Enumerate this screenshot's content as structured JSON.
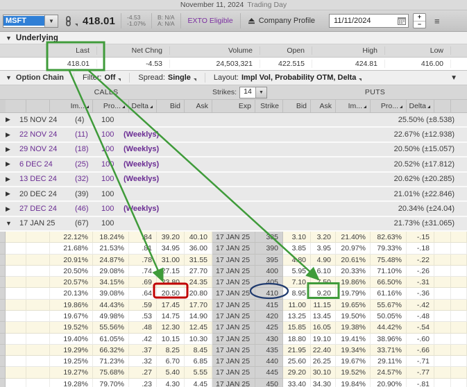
{
  "title_bar": {
    "date_text": "November 11, 2024",
    "day_text": "Trading Day"
  },
  "toolbar": {
    "symbol": "MSFT",
    "price": "418.01",
    "net_change": "-4.53",
    "net_change_pct": "-1.07%",
    "bid": "B: N/A",
    "ask": "A: N/A",
    "exto_label": "EXTO Eligible",
    "company_profile_label": "Company Profile",
    "date_value": "11/11/2024"
  },
  "underlying": {
    "section_label": "Underlying",
    "columns": [
      "Last",
      "Net Chng",
      "Volume",
      "Open",
      "High",
      "Low"
    ],
    "values": [
      "418.01",
      "-4.53",
      "24,503,321",
      "422.515",
      "424.81",
      "416.00"
    ]
  },
  "option_chain": {
    "section_label": "Option Chain",
    "filter_label": "Filter:",
    "filter_value": "Off",
    "spread_label": "Spread:",
    "spread_value": "Single",
    "layout_label": "Layout:",
    "layout_value": "Impl Vol, Probability OTM, Delta",
    "calls_label": "CALLS",
    "puts_label": "PUTS",
    "strikes_label": "Strikes:",
    "strikes_value": "14",
    "call_headers": [
      "Im...",
      "Pro...",
      "Delta",
      "Bid",
      "Ask",
      "Exp"
    ],
    "put_headers": [
      "Strike",
      "Bid",
      "Ask",
      "Im...",
      "Pro...",
      "Delta"
    ],
    "expirations": [
      {
        "date": "15 NOV 24",
        "days": "(4)",
        "mult": "100",
        "weekly": "",
        "iv": "25.50% (±8.538)",
        "expanded": false
      },
      {
        "date": "22 NOV 24",
        "days": "(11)",
        "mult": "100",
        "weekly": "(Weeklys)",
        "iv": "22.67% (±12.938)",
        "expanded": false
      },
      {
        "date": "29 NOV 24",
        "days": "(18)",
        "mult": "100",
        "weekly": "(Weeklys)",
        "iv": "20.50% (±15.057)",
        "expanded": false
      },
      {
        "date": "6 DEC 24",
        "days": "(25)",
        "mult": "100",
        "weekly": "(Weeklys)",
        "iv": "20.52% (±17.812)",
        "expanded": false
      },
      {
        "date": "13 DEC 24",
        "days": "(32)",
        "mult": "100",
        "weekly": "(Weeklys)",
        "iv": "20.62% (±20.285)",
        "expanded": false
      },
      {
        "date": "20 DEC 24",
        "days": "(39)",
        "mult": "100",
        "weekly": "",
        "iv": "21.01% (±22.846)",
        "expanded": false
      },
      {
        "date": "27 DEC 24",
        "days": "(46)",
        "mult": "100",
        "weekly": "(Weeklys)",
        "iv": "20.34% (±24.04)",
        "expanded": false
      },
      {
        "date": "17 JAN 25",
        "days": "(67)",
        "mult": "100",
        "weekly": "",
        "iv": "21.73% (±31.065)",
        "expanded": true
      }
    ],
    "rows": [
      {
        "c_iv": "22.12%",
        "c_prob": "18.24%",
        "c_delta": ".84",
        "c_bid": "39.20",
        "c_ask": "40.10",
        "exp": "17 JAN 25",
        "strike": "385",
        "p_bid": "3.10",
        "p_ask": "3.20",
        "p_iv": "21.40%",
        "p_prob": "82.63%",
        "p_delta": "-.15"
      },
      {
        "c_iv": "21.68%",
        "c_prob": "21.53%",
        "c_delta": ".81",
        "c_bid": "34.95",
        "c_ask": "36.00",
        "exp": "17 JAN 25",
        "strike": "390",
        "p_bid": "3.85",
        "p_ask": "3.95",
        "p_iv": "20.97%",
        "p_prob": "79.33%",
        "p_delta": "-.18"
      },
      {
        "c_iv": "20.91%",
        "c_prob": "24.87%",
        "c_delta": ".78",
        "c_bid": "31.00",
        "c_ask": "31.55",
        "exp": "17 JAN 25",
        "strike": "395",
        "p_bid": "4.80",
        "p_ask": "4.90",
        "p_iv": "20.61%",
        "p_prob": "75.48%",
        "p_delta": "-.22"
      },
      {
        "c_iv": "20.50%",
        "c_prob": "29.08%",
        "c_delta": ".74",
        "c_bid": "27.15",
        "c_ask": "27.70",
        "exp": "17 JAN 25",
        "strike": "400",
        "p_bid": "5.95",
        "p_ask": "6.10",
        "p_iv": "20.33%",
        "p_prob": "71.10%",
        "p_delta": "-.26"
      },
      {
        "c_iv": "20.57%",
        "c_prob": "34.15%",
        "c_delta": ".69",
        "c_bid": "23.80",
        "c_ask": "24.35",
        "exp": "17 JAN 25",
        "strike": "405",
        "p_bid": "7.10",
        "p_ask": "7.50",
        "p_iv": "19.86%",
        "p_prob": "66.50%",
        "p_delta": "-.31"
      },
      {
        "c_iv": "20.13%",
        "c_prob": "39.08%",
        "c_delta": ".64",
        "c_bid": "20.50",
        "c_ask": "20.80",
        "exp": "17 JAN 25",
        "strike": "410",
        "p_bid": "8.95",
        "p_ask": "9.20",
        "p_iv": "19.79%",
        "p_prob": "61.16%",
        "p_delta": "-.36"
      },
      {
        "c_iv": "19.86%",
        "c_prob": "44.43%",
        "c_delta": ".59",
        "c_bid": "17.45",
        "c_ask": "17.70",
        "exp": "17 JAN 25",
        "strike": "415",
        "p_bid": "11.00",
        "p_ask": "11.15",
        "p_iv": "19.65%",
        "p_prob": "55.67%",
        "p_delta": "-.42"
      },
      {
        "c_iv": "19.67%",
        "c_prob": "49.98%",
        "c_delta": ".53",
        "c_bid": "14.75",
        "c_ask": "14.90",
        "exp": "17 JAN 25",
        "strike": "420",
        "p_bid": "13.25",
        "p_ask": "13.45",
        "p_iv": "19.50%",
        "p_prob": "50.05%",
        "p_delta": "-.48"
      },
      {
        "c_iv": "19.52%",
        "c_prob": "55.56%",
        "c_delta": ".48",
        "c_bid": "12.30",
        "c_ask": "12.45",
        "exp": "17 JAN 25",
        "strike": "425",
        "p_bid": "15.85",
        "p_ask": "16.05",
        "p_iv": "19.38%",
        "p_prob": "44.42%",
        "p_delta": "-.54"
      },
      {
        "c_iv": "19.40%",
        "c_prob": "61.05%",
        "c_delta": ".42",
        "c_bid": "10.15",
        "c_ask": "10.30",
        "exp": "17 JAN 25",
        "strike": "430",
        "p_bid": "18.80",
        "p_ask": "19.10",
        "p_iv": "19.41%",
        "p_prob": "38.96%",
        "p_delta": "-.60"
      },
      {
        "c_iv": "19.29%",
        "c_prob": "66.32%",
        "c_delta": ".37",
        "c_bid": "8.25",
        "c_ask": "8.45",
        "exp": "17 JAN 25",
        "strike": "435",
        "p_bid": "21.95",
        "p_ask": "22.40",
        "p_iv": "19.34%",
        "p_prob": "33.71%",
        "p_delta": "-.66"
      },
      {
        "c_iv": "19.25%",
        "c_prob": "71.23%",
        "c_delta": ".32",
        "c_bid": "6.70",
        "c_ask": "6.85",
        "exp": "17 JAN 25",
        "strike": "440",
        "p_bid": "25.60",
        "p_ask": "26.25",
        "p_iv": "19.67%",
        "p_prob": "29.11%",
        "p_delta": "-.71"
      },
      {
        "c_iv": "19.27%",
        "c_prob": "75.68%",
        "c_delta": ".27",
        "c_bid": "5.40",
        "c_ask": "5.55",
        "exp": "17 JAN 25",
        "strike": "445",
        "p_bid": "29.20",
        "p_ask": "30.10",
        "p_iv": "19.52%",
        "p_prob": "24.57%",
        "p_delta": "-.77"
      },
      {
        "c_iv": "19.28%",
        "c_prob": "79.70%",
        "c_delta": ".23",
        "c_bid": "4.30",
        "c_ask": "4.45",
        "exp": "17 JAN 25",
        "strike": "450",
        "p_bid": "33.40",
        "p_ask": "34.30",
        "p_iv": "19.84%",
        "p_prob": "20.90%",
        "p_delta": "-.81"
      }
    ]
  },
  "annotations": {
    "highlight_color": "#3f9b3a",
    "alert_color": "#c00000",
    "circle_color": "#1f3a6e",
    "highlighted_last_value": "418.01",
    "boxed_call_bid": "20.50",
    "boxed_put_ask": "9.20",
    "circled_strike": "410"
  }
}
